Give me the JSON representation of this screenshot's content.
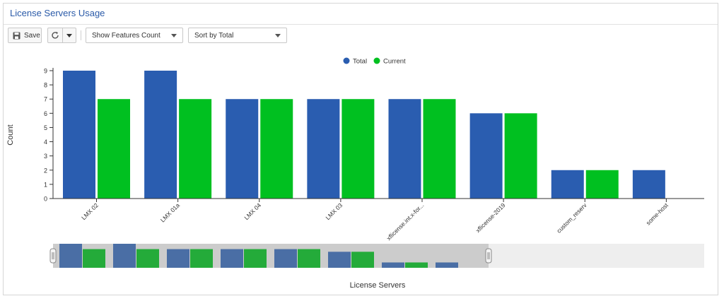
{
  "panel": {
    "title": "License Servers Usage"
  },
  "toolbar": {
    "save_label": "Save",
    "features_dropdown": "Show Features Count",
    "sort_dropdown": "Sort by Total"
  },
  "colors": {
    "total": "#2a5db0",
    "current": "#00c020",
    "nav_total": "#4a6ea5",
    "nav_current": "#24ab3a"
  },
  "chart_data": {
    "type": "bar",
    "categories": [
      "LMX 02",
      "LMX 01a",
      "LMX 04",
      "LMX 03",
      "xflicense.int.x-for...",
      "xflicense-2019",
      "custom_reserv",
      "some-host"
    ],
    "series": [
      {
        "name": "Total",
        "values": [
          9,
          9,
          7,
          7,
          7,
          6,
          2,
          2
        ]
      },
      {
        "name": "Current",
        "values": [
          7,
          7,
          7,
          7,
          7,
          6,
          2,
          0
        ]
      }
    ],
    "xlabel": "License Servers",
    "ylabel": "Count",
    "ylim": [
      0,
      9
    ],
    "yticks": [
      0,
      1,
      2,
      3,
      4,
      5,
      6,
      7,
      8,
      9
    ],
    "legend_position": "top-center",
    "grid": false
  }
}
